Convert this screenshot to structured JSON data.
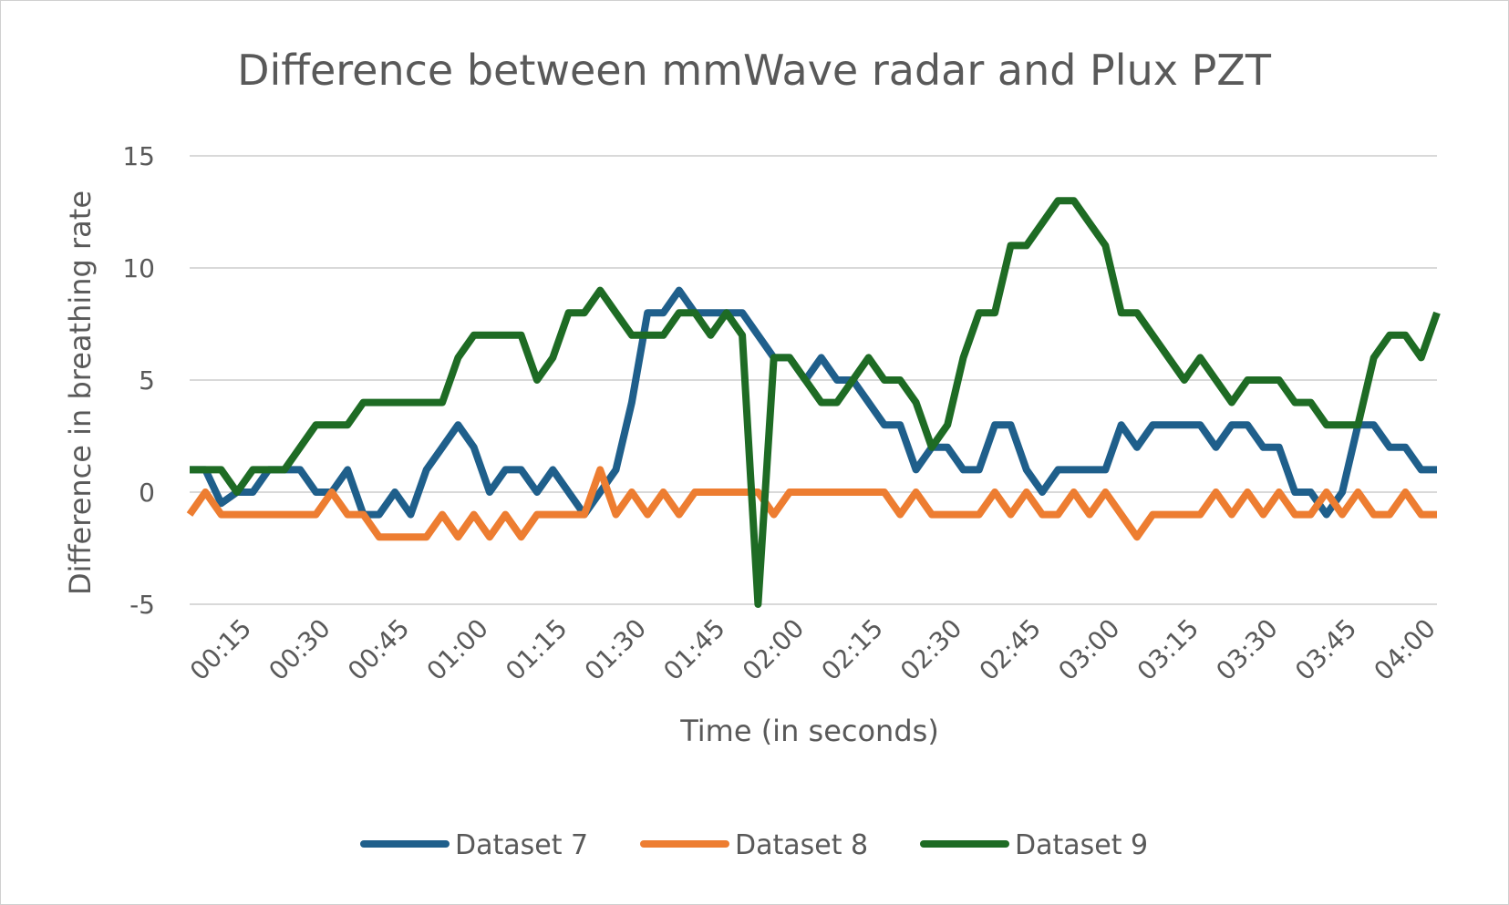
{
  "chart_data": {
    "type": "line",
    "title": "Difference between mmWave radar and Plux PZT",
    "xlabel": "Time (in seconds)",
    "ylabel": "Difference in breathing rate",
    "ylim": [
      -5,
      15
    ],
    "yticks": [
      -5,
      0,
      5,
      10,
      15
    ],
    "grid": true,
    "legend": "bottom",
    "xtick_labels": [
      "00:15",
      "00:30",
      "00:45",
      "01:00",
      "01:15",
      "01:30",
      "01:45",
      "02:00",
      "02:15",
      "02:30",
      "02:45",
      "03:00",
      "03:15",
      "03:30",
      "03:45",
      "04:00"
    ],
    "x_range_seconds": [
      3,
      240
    ],
    "x": [
      3,
      6,
      9,
      12,
      15,
      18,
      21,
      24,
      27,
      30,
      33,
      36,
      39,
      42,
      45,
      48,
      51,
      54,
      57,
      60,
      63,
      66,
      69,
      72,
      75,
      78,
      81,
      84,
      87,
      90,
      93,
      96,
      99,
      102,
      105,
      108,
      111,
      114,
      117,
      120,
      123,
      126,
      129,
      132,
      135,
      138,
      141,
      144,
      147,
      150,
      153,
      156,
      159,
      162,
      165,
      168,
      171,
      174,
      177,
      180,
      183,
      186,
      189,
      192,
      195,
      198,
      201,
      204,
      207,
      210,
      213,
      216,
      219,
      222,
      225,
      228,
      231,
      234,
      237,
      240
    ],
    "series": [
      {
        "name": "Dataset 7",
        "color": "#1f5f8b",
        "values": [
          1,
          1,
          -0.5,
          0,
          0,
          1,
          1,
          1,
          0,
          0,
          1,
          -1,
          -1,
          0,
          -1,
          1,
          2,
          3,
          2,
          0,
          1,
          1,
          0,
          1,
          0,
          -1,
          0,
          1,
          4,
          8,
          8,
          9,
          8,
          8,
          8,
          8,
          7,
          6,
          6,
          5,
          6,
          5,
          5,
          4,
          3,
          3,
          1,
          2,
          2,
          1,
          1,
          3,
          3,
          1,
          0,
          1,
          1,
          1,
          1,
          3,
          2,
          3,
          3,
          3,
          3,
          2,
          3,
          3,
          2,
          2,
          0,
          0,
          -1,
          0,
          3,
          3,
          2,
          2,
          1,
          1
        ]
      },
      {
        "name": "Dataset 8",
        "color": "#ed7d31",
        "values": [
          -1,
          0,
          -1,
          -1,
          -1,
          -1,
          -1,
          -1,
          -1,
          0,
          -1,
          -1,
          -2,
          -2,
          -2,
          -2,
          -1,
          -2,
          -1,
          -2,
          -1,
          -2,
          -1,
          -1,
          -1,
          -1,
          1,
          -1,
          0,
          -1,
          0,
          -1,
          0,
          0,
          0,
          0,
          0,
          -1,
          0,
          0,
          0,
          0,
          0,
          0,
          0,
          -1,
          0,
          -1,
          -1,
          -1,
          -1,
          0,
          -1,
          0,
          -1,
          -1,
          0,
          -1,
          0,
          -1,
          -2,
          -1,
          -1,
          -1,
          -1,
          0,
          -1,
          0,
          -1,
          0,
          -1,
          -1,
          0,
          -1,
          0,
          -1,
          -1,
          0,
          -1,
          -1
        ]
      },
      {
        "name": "Dataset 9",
        "color": "#1e6b24",
        "values": [
          1,
          1,
          1,
          0,
          1,
          1,
          1,
          2,
          3,
          3,
          3,
          4,
          4,
          4,
          4,
          4,
          4,
          6,
          7,
          7,
          7,
          7,
          5,
          6,
          8,
          8,
          9,
          8,
          7,
          7,
          7,
          8,
          8,
          7,
          8,
          7,
          -5,
          6,
          6,
          5,
          4,
          4,
          5,
          6,
          5,
          5,
          4,
          2,
          3,
          6,
          8,
          8,
          11,
          11,
          12,
          13,
          13,
          12,
          11,
          8,
          8,
          7,
          6,
          5,
          6,
          5,
          4,
          5,
          5,
          5,
          4,
          4,
          3,
          3,
          3,
          6,
          7,
          7,
          6,
          8
        ]
      }
    ]
  }
}
